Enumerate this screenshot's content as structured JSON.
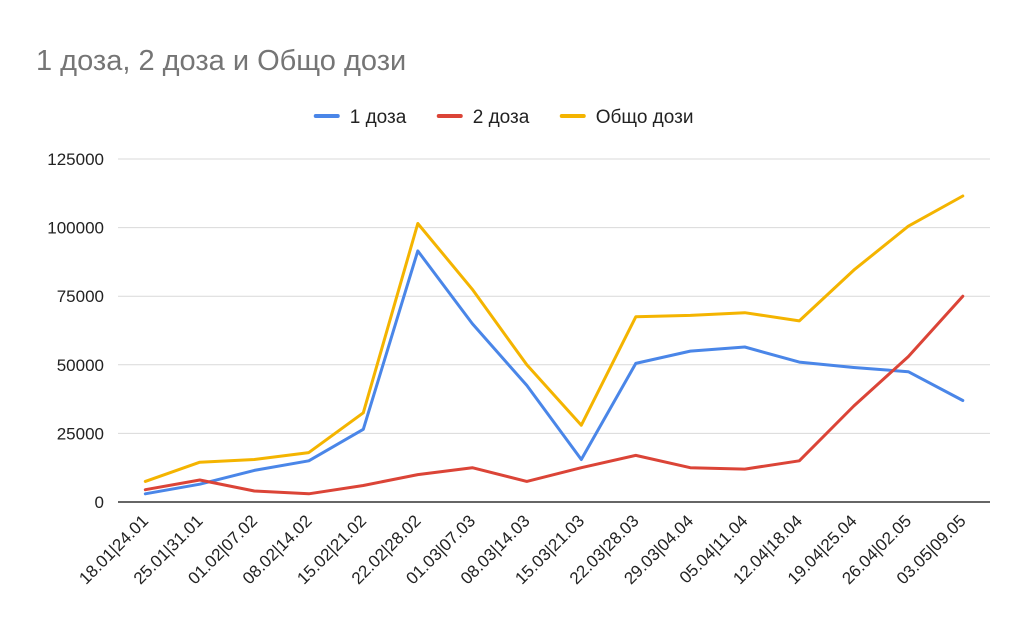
{
  "chart_data": {
    "type": "line",
    "title": "1 доза, 2 доза и Общо дози",
    "xlabel": "",
    "ylabel": "",
    "ylim": [
      0,
      125000
    ],
    "yticks": [
      0,
      25000,
      50000,
      75000,
      100000,
      125000
    ],
    "grid": true,
    "legend_position": "top",
    "categories": [
      "18.01|24.01",
      "25.01|31.01",
      "01.02|07.02",
      "08.02|14.02",
      "15.02|21.02",
      "22.02|28.02",
      "01.03|07.03",
      "08.03|14.03",
      "15.03|21.03",
      "22.03|28.03",
      "29.03|04.04",
      "05.04|11.04",
      "12.04|18.04",
      "19.04|25.04",
      "26.04|02.05",
      "03.05|09.05"
    ],
    "series": [
      {
        "name": "1 доза",
        "color": "#4a86e8",
        "values": [
          3000,
          6500,
          11500,
          15000,
          26500,
          91500,
          65000,
          42500,
          15500,
          50500,
          55000,
          56500,
          51000,
          49000,
          47500,
          37000
        ]
      },
      {
        "name": "2 доза",
        "color": "#db4437",
        "values": [
          4500,
          8000,
          4000,
          3000,
          6000,
          10000,
          12500,
          7500,
          12500,
          17000,
          12500,
          12000,
          15000,
          35000,
          53000,
          75000
        ]
      },
      {
        "name": "Общо дози",
        "color": "#f4b400",
        "values": [
          7500,
          14500,
          15500,
          18000,
          32500,
          101500,
          77500,
          50000,
          28000,
          67500,
          68000,
          69000,
          66000,
          84500,
          100500,
          111500
        ]
      }
    ]
  }
}
